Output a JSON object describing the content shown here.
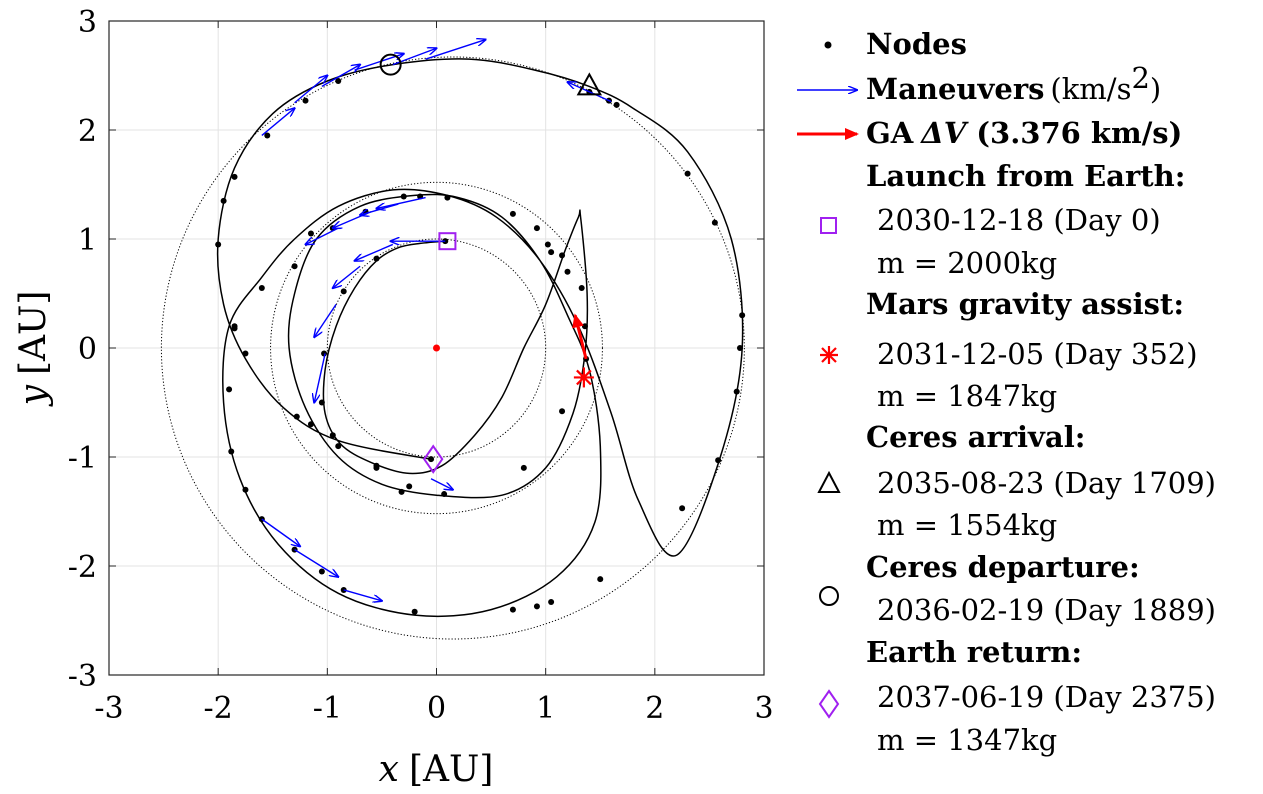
{
  "chart_data": {
    "type": "scatter",
    "xlabel_var": "x",
    "xlabel_unit": "[AU]",
    "ylabel_var": "y",
    "ylabel_unit": "[AU]",
    "xlim": [
      -3,
      3
    ],
    "ylim": [
      -3,
      3
    ],
    "xticks": [
      "-3",
      "-2",
      "-1",
      "0",
      "1",
      "2",
      "3"
    ],
    "yticks": [
      "-3",
      "-2",
      "-1",
      "0",
      "1",
      "2",
      "3"
    ],
    "grid": true,
    "legend_placement": "right",
    "reference_orbits": [
      {
        "kind": "dotted-circle",
        "cx": 0,
        "cy": 0,
        "r": 1.0
      },
      {
        "kind": "dotted-circle",
        "cx": 0,
        "cy": 0,
        "r": 1.52
      },
      {
        "kind": "dotted-circle",
        "cx": 0.15,
        "cy": 0,
        "r": 2.67
      }
    ],
    "sun": {
      "x": 0,
      "y": 0,
      "color": "#ff0000"
    },
    "trajectory": [
      [
        0.08,
        0.98
      ],
      [
        -0.15,
        0.96
      ],
      [
        -0.35,
        0.92
      ],
      [
        -0.55,
        0.8
      ],
      [
        -0.75,
        0.55
      ],
      [
        -0.92,
        0.2
      ],
      [
        -1.02,
        -0.2
      ],
      [
        -1.02,
        -0.6
      ],
      [
        -0.88,
        -0.88
      ],
      [
        -0.6,
        -1.05
      ],
      [
        -0.25,
        -1.15
      ],
      [
        0.05,
        -1.08
      ],
      [
        0.35,
        -0.8
      ],
      [
        0.6,
        -0.45
      ],
      [
        0.8,
        0.0
      ],
      [
        1.0,
        0.4
      ],
      [
        1.18,
        0.9
      ],
      [
        1.3,
        1.2
      ],
      [
        1.32,
        1.2
      ],
      [
        1.38,
        0.5
      ],
      [
        1.36,
        -0.05
      ],
      [
        1.25,
        -0.6
      ],
      [
        1.0,
        -1.1
      ],
      [
        0.6,
        -1.35
      ],
      [
        0.0,
        -1.35
      ],
      [
        -0.5,
        -1.25
      ],
      [
        -0.9,
        -1.0
      ],
      [
        -1.2,
        -0.55
      ],
      [
        -1.35,
        0.0
      ],
      [
        -1.3,
        0.5
      ],
      [
        -1.1,
        1.0
      ],
      [
        -0.7,
        1.3
      ],
      [
        -0.2,
        1.4
      ],
      [
        0.2,
        1.38
      ],
      [
        0.6,
        1.2
      ],
      [
        0.95,
        0.8
      ],
      [
        1.2,
        0.3
      ],
      [
        1.4,
        -0.2
      ],
      [
        1.5,
        -0.9
      ],
      [
        1.45,
        -1.6
      ],
      [
        1.1,
        -2.1
      ],
      [
        0.5,
        -2.4
      ],
      [
        -0.2,
        -2.45
      ],
      [
        -0.9,
        -2.25
      ],
      [
        -1.45,
        -1.8
      ],
      [
        -1.8,
        -1.2
      ],
      [
        -1.95,
        -0.5
      ],
      [
        -1.9,
        0.2
      ],
      [
        -1.6,
        0.65
      ],
      [
        -1.3,
        1.0
      ],
      [
        -0.9,
        1.3
      ],
      [
        -0.4,
        1.45
      ],
      [
        0.1,
        1.4
      ],
      [
        0.55,
        1.2
      ],
      [
        0.95,
        0.8
      ],
      [
        1.3,
        0.2
      ],
      [
        1.6,
        -0.6
      ],
      [
        1.85,
        -1.4
      ],
      [
        2.2,
        -1.9
      ],
      [
        2.6,
        -1.0
      ],
      [
        2.8,
        0.0
      ],
      [
        2.7,
        1.0
      ],
      [
        2.3,
        1.8
      ],
      [
        1.8,
        2.2
      ],
      [
        1.4,
        2.4
      ],
      [
        0.9,
        2.55
      ],
      [
        0.3,
        2.65
      ],
      [
        -0.4,
        2.6
      ],
      [
        -1.0,
        2.45
      ],
      [
        -1.5,
        2.15
      ],
      [
        -1.85,
        1.65
      ],
      [
        -2.0,
        1.0
      ],
      [
        -1.95,
        0.4
      ],
      [
        -1.75,
        -0.1
      ],
      [
        -1.4,
        -0.55
      ],
      [
        -0.9,
        -0.85
      ],
      [
        -0.05,
        -1.02
      ]
    ],
    "nodes": [
      [
        0.08,
        0.98
      ],
      [
        -0.55,
        0.82
      ],
      [
        -0.85,
        0.52
      ],
      [
        -1.03,
        -0.05
      ],
      [
        -1.05,
        -0.5
      ],
      [
        -0.95,
        -0.8
      ],
      [
        -0.55,
        -1.08
      ],
      [
        -0.25,
        -1.27
      ],
      [
        0.07,
        -1.34
      ],
      [
        0.8,
        -1.1
      ],
      [
        1.15,
        -0.58
      ],
      [
        1.37,
        -0.1
      ],
      [
        1.36,
        0.2
      ],
      [
        1.33,
        0.55
      ],
      [
        1.15,
        0.85
      ],
      [
        1.02,
        0.95
      ],
      [
        0.92,
        1.1
      ],
      [
        0.7,
        1.23
      ],
      [
        0.1,
        1.38
      ],
      [
        -0.15,
        1.39
      ],
      [
        -0.3,
        1.39
      ],
      [
        -0.65,
        1.25
      ],
      [
        -0.95,
        1.1
      ],
      [
        -1.15,
        1.05
      ],
      [
        -1.3,
        0.75
      ],
      [
        -1.6,
        0.55
      ],
      [
        -1.85,
        0.18
      ],
      [
        -1.9,
        -0.38
      ],
      [
        -1.88,
        -0.95
      ],
      [
        -1.75,
        -1.3
      ],
      [
        -1.6,
        -1.57
      ],
      [
        -1.3,
        -1.85
      ],
      [
        -1.05,
        -2.05
      ],
      [
        -0.85,
        -2.22
      ],
      [
        -0.2,
        -2.42
      ],
      [
        0.7,
        -2.4
      ],
      [
        0.92,
        -2.37
      ],
      [
        1.05,
        -2.33
      ],
      [
        1.5,
        -2.12
      ],
      [
        2.25,
        -1.47
      ],
      [
        2.58,
        -1.03
      ],
      [
        2.75,
        -0.4
      ],
      [
        2.78,
        0.0
      ],
      [
        2.8,
        0.3
      ],
      [
        2.55,
        1.15
      ],
      [
        2.3,
        1.6
      ],
      [
        1.65,
        2.23
      ],
      [
        1.58,
        2.27
      ],
      [
        1.4,
        2.35
      ],
      [
        -0.9,
        2.45
      ],
      [
        -1.2,
        2.27
      ],
      [
        -1.55,
        1.95
      ],
      [
        -1.85,
        1.57
      ],
      [
        -1.95,
        1.35
      ],
      [
        -2.0,
        0.95
      ],
      [
        -1.85,
        0.2
      ],
      [
        -1.75,
        -0.05
      ],
      [
        -1.28,
        -0.63
      ],
      [
        -1.15,
        -0.7
      ],
      [
        -0.9,
        -0.9
      ],
      [
        -0.55,
        -1.1
      ],
      [
        -0.32,
        -1.32
      ],
      [
        -0.05,
        -1.02
      ],
      [
        1.2,
        0.7
      ],
      [
        1.05,
        0.88
      ]
    ],
    "maneuvers": [
      {
        "x": 0.08,
        "y": 0.98,
        "dx": -0.5,
        "dy": 0.0
      },
      {
        "x": -0.4,
        "y": 0.95,
        "dx": -0.35,
        "dy": -0.15
      },
      {
        "x": -0.7,
        "y": 0.75,
        "dx": -0.25,
        "dy": -0.2
      },
      {
        "x": -0.92,
        "y": 0.4,
        "dx": -0.2,
        "dy": -0.3
      },
      {
        "x": -1.02,
        "y": -0.05,
        "dx": -0.1,
        "dy": -0.45
      },
      {
        "x": -0.1,
        "y": 1.38,
        "dx": -0.45,
        "dy": -0.1
      },
      {
        "x": -0.35,
        "y": 1.32,
        "dx": -0.35,
        "dy": -0.1
      },
      {
        "x": -0.6,
        "y": 1.25,
        "dx": -0.35,
        "dy": -0.15
      },
      {
        "x": -0.9,
        "y": 1.1,
        "dx": -0.3,
        "dy": -0.15
      },
      {
        "x": -1.6,
        "y": 1.95,
        "dx": 0.3,
        "dy": 0.25
      },
      {
        "x": -1.3,
        "y": 2.25,
        "dx": 0.3,
        "dy": 0.25
      },
      {
        "x": -1.05,
        "y": 2.4,
        "dx": 0.35,
        "dy": 0.2
      },
      {
        "x": -0.75,
        "y": 2.55,
        "dx": 0.45,
        "dy": 0.15
      },
      {
        "x": -0.4,
        "y": 2.6,
        "dx": 0.4,
        "dy": 0.15
      },
      {
        "x": -0.1,
        "y": 2.65,
        "dx": 0.55,
        "dy": 0.18
      },
      {
        "x": -1.6,
        "y": -1.57,
        "dx": 0.35,
        "dy": -0.25
      },
      {
        "x": -1.3,
        "y": -1.85,
        "dx": 0.4,
        "dy": -0.25
      },
      {
        "x": -0.85,
        "y": -2.22,
        "dx": 0.35,
        "dy": -0.1
      },
      {
        "x": 1.6,
        "y": 2.26,
        "dx": -0.4,
        "dy": 0.18
      },
      {
        "x": -0.05,
        "y": -1.2,
        "dx": 0.2,
        "dy": -0.1
      }
    ],
    "ga_arrow": {
      "x": 1.37,
      "y": -0.1,
      "dx": -0.1,
      "dy": 0.4,
      "color": "#ff0000"
    },
    "events": [
      {
        "name": "launch",
        "marker": "square",
        "color": "#a020f0",
        "x": 0.1,
        "y": 0.98
      },
      {
        "name": "mars_ga",
        "marker": "asterisk",
        "color": "#ff0000",
        "x": 1.35,
        "y": -0.27
      },
      {
        "name": "ceres_arrival",
        "marker": "triangle",
        "color": "#000000",
        "x": 1.4,
        "y": 2.4
      },
      {
        "name": "ceres_departure",
        "marker": "circle",
        "color": "#000000",
        "x": -0.42,
        "y": 2.6
      },
      {
        "name": "earth_return",
        "marker": "diamond",
        "color": "#a020f0",
        "x": -0.03,
        "y": -1.02
      }
    ],
    "legend": {
      "nodes": "Nodes",
      "maneuvers": "Maneuvers",
      "maneuvers_unit_a": "(km/s",
      "maneuvers_unit_sup": "2",
      "maneuvers_unit_b": ")",
      "ga_prefix": "GA",
      "ga_delta": "ΔV",
      "ga_value": "(3.376 km/s)",
      "launch_title": "Launch from Earth:",
      "launch_date": "2030-12-18 (Day 0)",
      "launch_mass": "m = 2000kg",
      "mars_title": "Mars gravity assist:",
      "mars_date": "2031-12-05 (Day 352)",
      "mars_mass": "m = 1847kg",
      "arrival_title": "Ceres arrival:",
      "arrival_date": "2035-08-23 (Day 1709)",
      "arrival_mass": "m = 1554kg",
      "departure_title": "Ceres departure:",
      "departure_date": "2036-02-19 (Day 1889)",
      "return_title": "Earth return:",
      "return_date": "2037-06-19 (Day 2375)",
      "return_mass": "m = 1347kg"
    },
    "colors": {
      "maneuver": "#0000ff",
      "ga": "#ff0000",
      "purple": "#a020f0"
    }
  }
}
